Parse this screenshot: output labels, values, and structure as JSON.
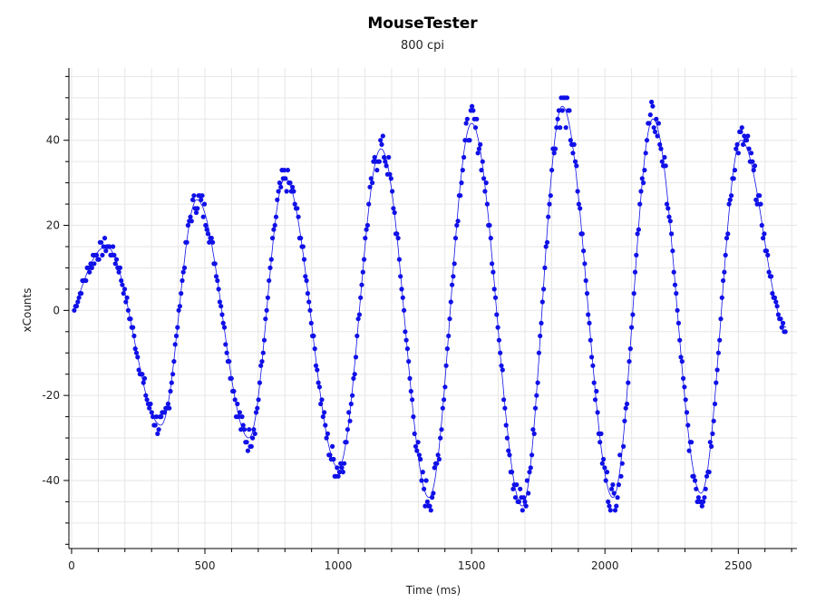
{
  "chart_data": {
    "type": "scatter",
    "title": "MouseTester",
    "subtitle": "800 cpi",
    "xlabel": "Time (ms)",
    "ylabel": "xCounts",
    "xlim": [
      -10,
      2720
    ],
    "ylim": [
      -56,
      57
    ],
    "xticks": [
      0,
      500,
      1000,
      1500,
      2000,
      2500
    ],
    "yticks": [
      -40,
      -20,
      0,
      20,
      40
    ],
    "grid": true,
    "legend": "none",
    "colors": {
      "points": "#1010e8",
      "line": "#1010e8",
      "grid": "#e6e6e6",
      "axis": "#000000"
    },
    "series": [
      {
        "style": "points-with-smooth-line",
        "peaks": [
          {
            "x": 130,
            "y": 15
          },
          {
            "x": 335,
            "y": -27
          },
          {
            "x": 470,
            "y": 26
          },
          {
            "x": 665,
            "y": -30
          },
          {
            "x": 800,
            "y": 31
          },
          {
            "x": 1000,
            "y": -37
          },
          {
            "x": 1160,
            "y": 38
          },
          {
            "x": 1340,
            "y": -44
          },
          {
            "x": 1500,
            "y": 44
          },
          {
            "x": 1690,
            "y": -46
          },
          {
            "x": 1840,
            "y": 48
          },
          {
            "x": 2030,
            "y": -44
          },
          {
            "x": 2180,
            "y": 45
          },
          {
            "x": 2360,
            "y": -43
          },
          {
            "x": 2510,
            "y": 40
          },
          {
            "x": 2680,
            "y": -4
          }
        ],
        "start": {
          "x": 10,
          "y": 0
        }
      }
    ]
  }
}
